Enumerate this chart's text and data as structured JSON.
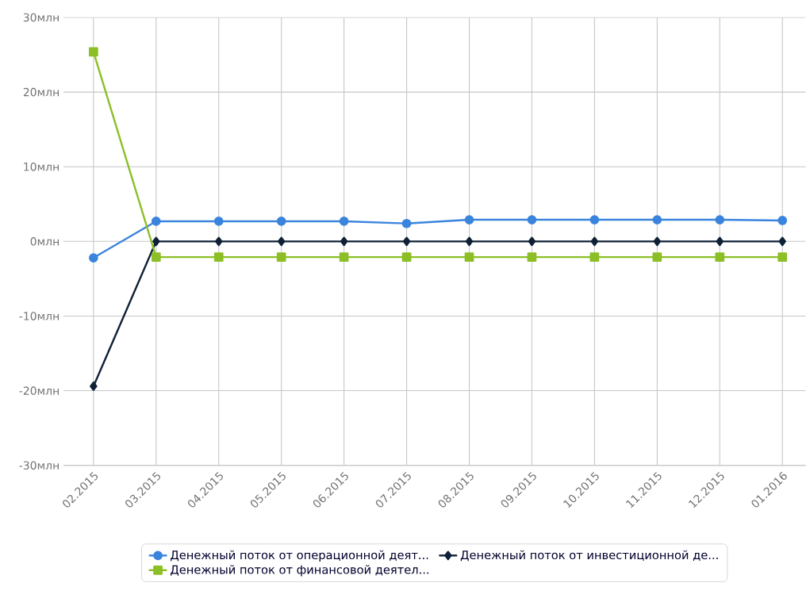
{
  "chart_data": {
    "type": "line",
    "categories": [
      "02.2015",
      "03.2015",
      "04.2015",
      "05.2015",
      "06.2015",
      "07.2015",
      "08.2015",
      "09.2015",
      "10.2015",
      "11.2015",
      "12.2015",
      "01.2016"
    ],
    "series": [
      {
        "name": "Денежный поток от операционной деят...",
        "color": "#3a84dd",
        "marker": "circle",
        "values": [
          -2.2,
          2.7,
          2.7,
          2.7,
          2.7,
          2.4,
          2.9,
          2.9,
          2.9,
          2.9,
          2.9,
          2.8
        ]
      },
      {
        "name": "Денежный поток от инвестиционной де...",
        "color": "#0f2137",
        "marker": "diamond",
        "values": [
          -19.4,
          0,
          0,
          0,
          0,
          0,
          0,
          0,
          0,
          0,
          0,
          0
        ]
      },
      {
        "name": "Денежный поток от финансовой деятел...",
        "color": "#8cbf26",
        "marker": "square",
        "values": [
          25.4,
          -2.1,
          -2.1,
          -2.1,
          -2.1,
          -2.1,
          -2.1,
          -2.1,
          -2.1,
          -2.1,
          -2.1,
          -2.1
        ]
      }
    ],
    "ylim": [
      -30,
      30
    ],
    "yticks": [
      {
        "value": -30,
        "label": "-30млн"
      },
      {
        "value": -20,
        "label": "-20млн"
      },
      {
        "value": -10,
        "label": "-10млн"
      },
      {
        "value": 0,
        "label": "0млн"
      },
      {
        "value": 10,
        "label": "10млн"
      },
      {
        "value": 20,
        "label": "20млн"
      },
      {
        "value": 30,
        "label": "30млн"
      }
    ],
    "grid": true,
    "legend": "bottom",
    "line_style": "solid"
  }
}
